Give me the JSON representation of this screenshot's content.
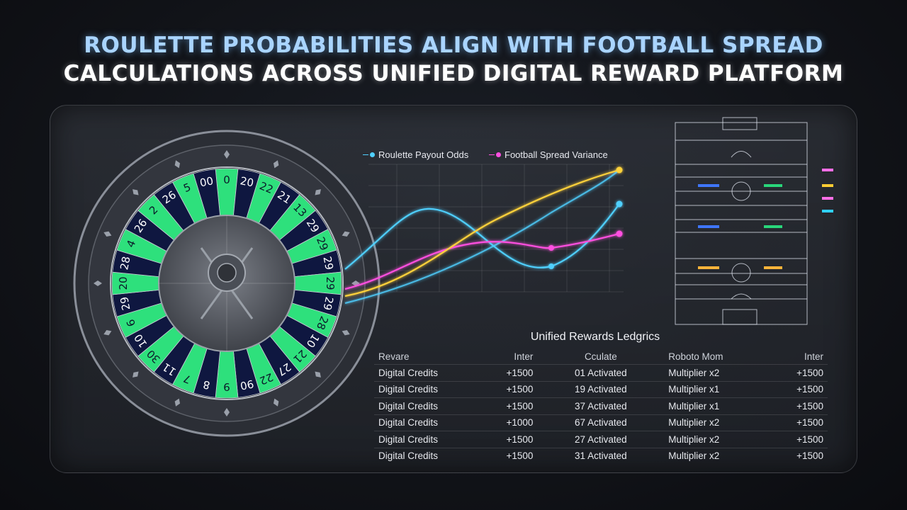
{
  "title": {
    "line1": "ROULETTE PROBABILITIES ALIGN WITH FOOTBALL SPREAD",
    "line2": "CALCULATIONS ACROSS UNIFIED DIGITAL REWARD PLATFORM"
  },
  "wheel": {
    "pockets": [
      "0",
      "20",
      "22",
      "21",
      "13",
      "29",
      "29",
      "29",
      "29",
      "29",
      "28",
      "10",
      "21",
      "27",
      "22",
      "90",
      "9",
      "8",
      "7",
      "11",
      "30",
      "10",
      "6",
      "29",
      "20",
      "28",
      "4",
      "26",
      "2",
      "26",
      "5",
      "00"
    ],
    "pocket_colors": {
      "green": "#2ee07c",
      "navy": "#0f1740",
      "zero": "#2ee07c"
    }
  },
  "legend": {
    "roulette": "Roulette Payout Odds",
    "football": "Football Spread Variance",
    "roulette_color": "#4fd0ff",
    "football_color": "#ff4fe0",
    "extra_color": "#ffd23a"
  },
  "chart_data": {
    "type": "line",
    "title": "",
    "xlabel": "",
    "ylabel": "",
    "series": [
      {
        "name": "Roulette Payout Odds",
        "color": "#4fd0ff",
        "values": [
          0.35,
          0.95,
          0.55,
          0.25,
          0.75
        ]
      },
      {
        "name": "Football Spread Variance",
        "color": "#ff4fe0",
        "values": [
          0.2,
          0.4,
          0.55,
          0.6,
          0.7
        ]
      },
      {
        "color": "#ffd23a",
        "values": [
          0.15,
          0.45,
          0.8,
          1.0
        ]
      }
    ]
  },
  "field": {
    "markers": [
      "blue",
      "blue",
      "blue",
      "green",
      "green",
      "orange",
      "orange",
      "orange"
    ],
    "side_colors": [
      "#ff6fe8",
      "#ffcc33",
      "#ff6fe8",
      "#2fd0ff"
    ]
  },
  "ledger": {
    "title": "Unified Rewards Ledgrics",
    "headers": [
      "Revare",
      "Inter",
      "Cculate",
      "Roboto Mom",
      "Inter"
    ],
    "rows": [
      [
        "Digital Credits",
        "+1500",
        "01 Activated",
        "Multiplier x2",
        "+1500"
      ],
      [
        "Digital Credits",
        "+1500",
        "19 Activated",
        "Multiplier x1",
        "+1500"
      ],
      [
        "Digital Credits",
        "+1500",
        "37 Activated",
        "Multiplier x1",
        "+1500"
      ],
      [
        "Digital Credits",
        "+1000",
        "67 Activated",
        "Multiplier x2",
        "+1500"
      ],
      [
        "Digital Credits",
        "+1500",
        "27 Activated",
        "Multiplier x2",
        "+1500"
      ],
      [
        "Digital Credits",
        "+1500",
        "31 Activated",
        "Multiplier x2",
        "+1500"
      ]
    ]
  }
}
